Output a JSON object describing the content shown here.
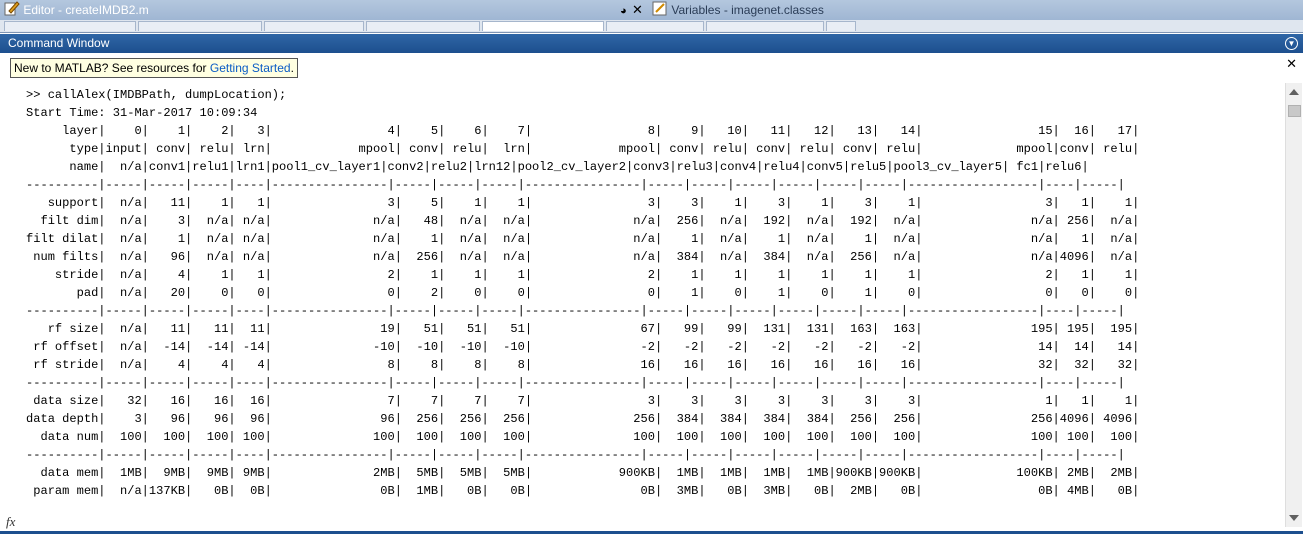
{
  "editor_tab": {
    "title": "Editor - createIMDB2.m",
    "icon": "edit-icon"
  },
  "variables_tab": {
    "title": "Variables - imagenet.classes",
    "icon": "variables-icon"
  },
  "command_window": {
    "title": "Command Window",
    "notice_prefix": "New to MATLAB? See resources for ",
    "notice_link": "Getting Started",
    "notice_suffix": "."
  },
  "console_lines": [
    ">> callAlex(IMDBPath, dumpLocation);",
    "Start Time: 31-Mar-2017 10:09:34",
    "",
    "     layer|    0|    1|    2|   3|                4|    5|    6|    7|                8|    9|   10|   11|   12|   13|   14|                15|  16|   17|",
    "      type|input| conv| relu| lrn|            mpool| conv| relu|  lrn|            mpool| conv| relu| conv| relu| conv| relu|             mpool|conv| relu|",
    "      name|  n/a|conv1|relu1|lrn1|pool1_cv_layer1|conv2|relu2|lrn12|pool2_cv_layer2|conv3|relu3|conv4|relu4|conv5|relu5|pool3_cv_layer5| fc1|relu6|",
    "----------|-----|-----|-----|----|----------------|-----|-----|-----|----------------|-----|-----|-----|-----|-----|-----|------------------|----|-----|",
    "   support|  n/a|   11|    1|   1|                3|    5|    1|    1|                3|    3|    1|    3|    1|    3|    1|                 3|   1|    1|",
    "  filt dim|  n/a|    3|  n/a| n/a|              n/a|   48|  n/a|  n/a|              n/a|  256|  n/a|  192|  n/a|  192|  n/a|               n/a| 256|  n/a|",
    "filt dilat|  n/a|    1|  n/a| n/a|              n/a|    1|  n/a|  n/a|              n/a|    1|  n/a|    1|  n/a|    1|  n/a|               n/a|   1|  n/a|",
    " num filts|  n/a|   96|  n/a| n/a|              n/a|  256|  n/a|  n/a|              n/a|  384|  n/a|  384|  n/a|  256|  n/a|               n/a|4096|  n/a|",
    "    stride|  n/a|    4|    1|   1|                2|    1|    1|    1|                2|    1|    1|    1|    1|    1|    1|                 2|   1|    1|",
    "       pad|  n/a|   20|    0|   0|                0|    2|    0|    0|                0|    1|    0|    1|    0|    1|    0|                 0|   0|    0|",
    "----------|-----|-----|-----|----|----------------|-----|-----|-----|----------------|-----|-----|-----|-----|-----|-----|------------------|----|-----|",
    "   rf size|  n/a|   11|   11|  11|               19|   51|   51|   51|               67|   99|   99|  131|  131|  163|  163|               195| 195|  195|",
    " rf offset|  n/a|  -14|  -14| -14|              -10|  -10|  -10|  -10|               -2|   -2|   -2|   -2|   -2|   -2|   -2|                14|  14|   14|",
    " rf stride|  n/a|    4|    4|   4|                8|    8|    8|    8|               16|   16|   16|   16|   16|   16|   16|                32|  32|   32|",
    "----------|-----|-----|-----|----|----------------|-----|-----|-----|----------------|-----|-----|-----|-----|-----|-----|------------------|----|-----|",
    " data size|   32|   16|   16|  16|                7|    7|    7|    7|                3|    3|    3|    3|    3|    3|    3|                 1|   1|    1|",
    "data depth|    3|   96|   96|  96|               96|  256|  256|  256|              256|  384|  384|  384|  384|  256|  256|               256|4096| 4096|",
    "  data num|  100|  100|  100| 100|              100|  100|  100|  100|              100|  100|  100|  100|  100|  100|  100|               100| 100|  100|",
    "----------|-----|-----|-----|----|----------------|-----|-----|-----|----------------|-----|-----|-----|-----|-----|-----|------------------|----|-----|",
    "  data mem|  1MB|  9MB|  9MB| 9MB|              2MB|  5MB|  5MB|  5MB|            900KB|  1MB|  1MB|  1MB|  1MB|900KB|900KB|             100KB| 2MB|  2MB|",
    " param mem|  n/a|137KB|   0B|  0B|               0B|  1MB|   0B|   0B|               0B|  3MB|   0B|  3MB|   0B|  2MB|   0B|                0B| 4MB|   0B|"
  ]
}
